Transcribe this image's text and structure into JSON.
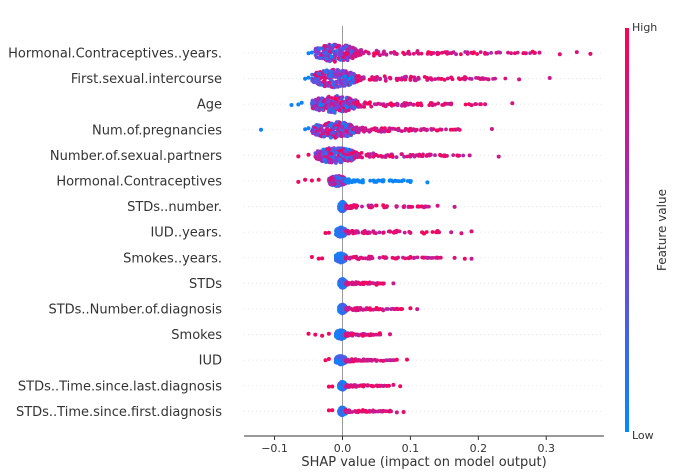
{
  "chart_data": {
    "type": "scatter",
    "subtype": "shap-beeswarm",
    "xlabel": "SHAP value (impact on model output)",
    "xlim": [
      -0.145,
      0.385
    ],
    "xticks": [
      -0.1,
      0.0,
      0.1,
      0.2,
      0.3
    ],
    "xtick_labels": [
      "−0.1",
      "0.0",
      "0.1",
      "0.2",
      "0.3"
    ],
    "zero_line": 0.0,
    "colorbar": {
      "title": "Feature value",
      "high_label": "High",
      "low_label": "Low",
      "low_color": "#008bfb",
      "high_color": "#ff0052"
    },
    "features": [
      {
        "name": "Hormonal.Contraceptives..years.",
        "min": -0.055,
        "max": 0.365,
        "spread": 1.0,
        "core": [
          -0.04,
          0.02
        ],
        "pos_points": [
          0.03,
          0.05,
          0.08,
          0.11,
          0.14,
          0.16,
          0.19,
          0.21,
          0.27,
          0.28,
          0.29,
          0.32,
          0.345,
          0.365
        ],
        "neg_points": [
          -0.05,
          -0.045
        ],
        "neg_color": "low"
      },
      {
        "name": "First.sexual.intercourse",
        "min": -0.06,
        "max": 0.305,
        "spread": 1.0,
        "core": [
          -0.045,
          0.02
        ],
        "pos_points": [
          0.04,
          0.07,
          0.1,
          0.13,
          0.16,
          0.18,
          0.215,
          0.26,
          0.305
        ],
        "neg_points": [
          -0.055,
          -0.05
        ],
        "neg_color": "low"
      },
      {
        "name": "Age",
        "min": -0.075,
        "max": 0.25,
        "spread": 0.95,
        "core": [
          -0.045,
          0.02
        ],
        "pos_points": [
          0.04,
          0.07,
          0.1,
          0.13,
          0.16,
          0.19,
          0.21,
          0.25
        ],
        "neg_points": [
          -0.075,
          -0.065,
          -0.06
        ],
        "neg_color": "low"
      },
      {
        "name": "Num.of.pregnancies",
        "min": -0.12,
        "max": 0.22,
        "spread": 0.9,
        "core": [
          -0.045,
          0.02
        ],
        "pos_points": [
          0.04,
          0.07,
          0.1,
          0.12,
          0.14,
          0.17,
          0.22
        ],
        "neg_points": [
          -0.12,
          -0.055,
          -0.05
        ],
        "neg_color": "low"
      },
      {
        "name": "Number.of.sexual.partners",
        "min": -0.065,
        "max": 0.23,
        "spread": 0.85,
        "core": [
          -0.04,
          0.02
        ],
        "pos_points": [
          0.04,
          0.07,
          0.1,
          0.13,
          0.15,
          0.17,
          0.23
        ],
        "neg_points": [
          -0.065,
          -0.05
        ],
        "neg_color": "high"
      },
      {
        "name": "Hormonal.Contraceptives",
        "min": -0.065,
        "max": 0.125,
        "spread": 0.6,
        "core": [
          -0.02,
          0.005
        ],
        "pos_points": [
          0.03,
          0.05,
          0.07,
          0.09,
          0.1,
          0.125
        ],
        "neg_points": [
          -0.065,
          -0.055,
          -0.045,
          -0.035
        ],
        "neg_color": "high",
        "pos_color": "low"
      },
      {
        "name": "STDs..number.",
        "min": -0.01,
        "max": 0.165,
        "spread": 0.55,
        "core": [
          -0.005,
          0.005
        ],
        "pos_points": [
          0.02,
          0.04,
          0.06,
          0.08,
          0.09,
          0.1,
          0.12,
          0.14,
          0.165
        ],
        "neg_points": [],
        "neg_color": "low"
      },
      {
        "name": "IUD..years.",
        "min": -0.025,
        "max": 0.19,
        "spread": 0.55,
        "core": [
          -0.01,
          0.005
        ],
        "pos_points": [
          0.02,
          0.04,
          0.06,
          0.08,
          0.1,
          0.12,
          0.14,
          0.16,
          0.175,
          0.19
        ],
        "neg_points": [
          -0.025,
          -0.02
        ],
        "neg_color": "high"
      },
      {
        "name": "Smokes..years.",
        "min": -0.045,
        "max": 0.19,
        "spread": 0.55,
        "core": [
          -0.01,
          0.005
        ],
        "pos_points": [
          0.02,
          0.04,
          0.06,
          0.08,
          0.1,
          0.12,
          0.14,
          0.165,
          0.18,
          0.19
        ],
        "neg_points": [
          -0.045,
          -0.035,
          -0.03
        ],
        "neg_color": "high"
      },
      {
        "name": "STDs",
        "min": -0.01,
        "max": 0.075,
        "spread": 0.5,
        "core": [
          -0.005,
          0.005
        ],
        "pos_points": [
          0.02,
          0.03,
          0.04,
          0.05,
          0.06,
          0.075
        ],
        "neg_points": [],
        "neg_color": "low"
      },
      {
        "name": "STDs..Number.of.diagnosis",
        "min": -0.01,
        "max": 0.11,
        "spread": 0.5,
        "core": [
          -0.005,
          0.005
        ],
        "pos_points": [
          0.02,
          0.03,
          0.04,
          0.05,
          0.06,
          0.08,
          0.1,
          0.11
        ],
        "neg_points": [],
        "neg_color": "low"
      },
      {
        "name": "Smokes",
        "min": -0.05,
        "max": 0.07,
        "spread": 0.5,
        "core": [
          -0.01,
          0.005
        ],
        "pos_points": [
          0.02,
          0.03,
          0.04,
          0.055,
          0.07
        ],
        "neg_points": [
          -0.05,
          -0.04,
          -0.03,
          -0.02
        ],
        "neg_color": "high"
      },
      {
        "name": "IUD",
        "min": -0.025,
        "max": 0.095,
        "spread": 0.5,
        "core": [
          -0.01,
          0.005
        ],
        "pos_points": [
          0.02,
          0.03,
          0.04,
          0.05,
          0.06,
          0.08,
          0.095
        ],
        "neg_points": [
          -0.025,
          -0.02
        ],
        "neg_color": "high"
      },
      {
        "name": "STDs..Time.since.last.diagnosis",
        "min": -0.02,
        "max": 0.085,
        "spread": 0.45,
        "core": [
          -0.005,
          0.005
        ],
        "pos_points": [
          0.02,
          0.03,
          0.045,
          0.06,
          0.075,
          0.085
        ],
        "neg_points": [
          -0.02,
          -0.015
        ],
        "neg_color": "high"
      },
      {
        "name": "STDs..Time.since.first.diagnosis",
        "min": -0.02,
        "max": 0.09,
        "spread": 0.45,
        "core": [
          -0.005,
          0.005
        ],
        "pos_points": [
          0.02,
          0.03,
          0.045,
          0.06,
          0.07,
          0.08,
          0.09
        ],
        "neg_points": [
          -0.02,
          -0.015
        ],
        "neg_color": "high"
      }
    ]
  }
}
